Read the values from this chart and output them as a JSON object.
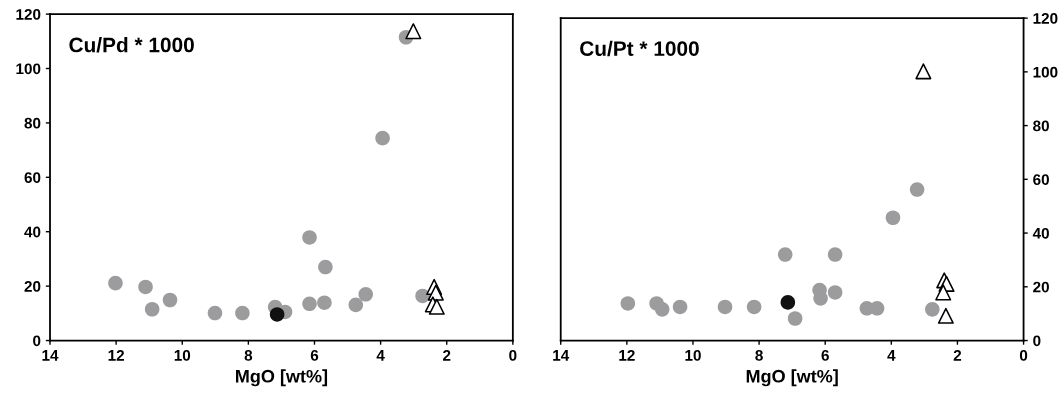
{
  "chart_data": [
    {
      "type": "scatter",
      "title": "Cu/Pd * 1000",
      "xlabel": "MgO [wt%]",
      "xlim": [
        14,
        0
      ],
      "xticks": [
        14,
        12,
        10,
        8,
        6,
        4,
        2,
        0
      ],
      "ylim": [
        0,
        120
      ],
      "yticks": [
        0,
        20,
        40,
        60,
        80,
        100,
        120
      ],
      "grid": false,
      "legend": false,
      "series": [
        {
          "marker": "circle",
          "color": "#9c9c9e",
          "x": [
            12.02,
            11.11,
            10.91,
            10.37,
            9.01,
            8.18,
            7.19,
            6.89,
            6.15,
            6.15,
            5.7,
            5.67,
            4.75,
            4.45,
            3.94,
            3.23,
            2.73
          ],
          "values": [
            21.1,
            19.7,
            11.5,
            14.9,
            10.1,
            10.1,
            12.3,
            10.5,
            37.9,
            13.5,
            13.9,
            27.0,
            13.1,
            17.0,
            74.4,
            111.5,
            16.4
          ]
        },
        {
          "marker": "circle",
          "color": "#111111",
          "x": [
            7.13
          ],
          "values": [
            9.6
          ]
        },
        {
          "marker": "triangle",
          "color": "#000000",
          "x": [
            3.01,
            2.38,
            2.33,
            2.42,
            2.3
          ],
          "values": [
            113.7,
            19.7,
            17.6,
            13.3,
            12.4
          ]
        }
      ]
    },
    {
      "type": "scatter",
      "title": "Cu/Pt * 1000",
      "xlabel": "MgO [wt%]",
      "xlim": [
        14,
        0
      ],
      "xticks": [
        14,
        12,
        10,
        8,
        6,
        4,
        2,
        0
      ],
      "y2lim": [
        0,
        120
      ],
      "y2ticks": [
        0,
        20,
        40,
        60,
        80,
        100,
        120
      ],
      "grid": false,
      "legend": false,
      "series": [
        {
          "axis": "y2",
          "marker": "circle",
          "color": "#9c9c9e",
          "x": [
            11.97,
            11.1,
            10.93,
            10.39,
            9.03,
            8.15,
            7.21,
            6.91,
            6.17,
            6.14,
            5.7,
            5.7,
            4.74,
            4.43,
            3.95,
            3.22,
            2.76
          ],
          "values": [
            13.8,
            13.8,
            11.6,
            12.5,
            12.5,
            12.5,
            32.0,
            8.2,
            18.8,
            15.7,
            32.0,
            17.9,
            12.0,
            12.0,
            45.7,
            56.2,
            11.6
          ]
        },
        {
          "axis": "y2",
          "marker": "circle",
          "color": "#111111",
          "x": [
            7.13
          ],
          "values": [
            14.2
          ]
        },
        {
          "axis": "y2",
          "marker": "triangle",
          "color": "#000000",
          "x": [
            3.03,
            2.4,
            2.33,
            2.43,
            2.35
          ],
          "values": [
            100.2,
            22.4,
            21.1,
            17.9,
            9.2
          ]
        }
      ]
    }
  ]
}
